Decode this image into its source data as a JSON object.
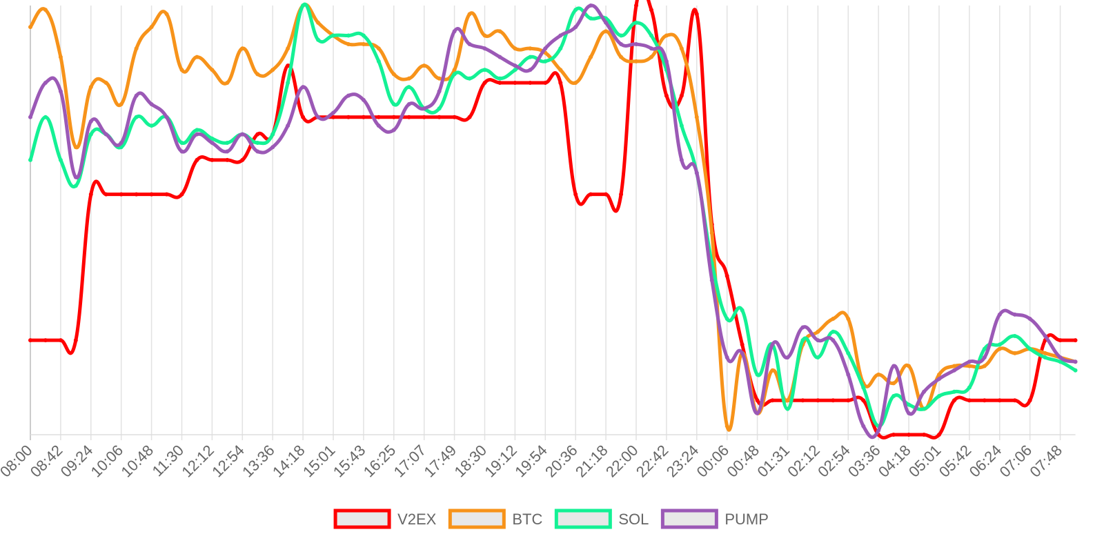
{
  "chart_data": {
    "type": "line",
    "categories": [
      "08:00",
      null,
      "08:42",
      null,
      "09:24",
      null,
      "10:06",
      null,
      "10:48",
      null,
      "11:30",
      null,
      "12:12",
      null,
      "12:54",
      null,
      "13:36",
      null,
      "14:18",
      null,
      "15:01",
      null,
      "15:43",
      null,
      "16:25",
      null,
      "17:07",
      null,
      "17:49",
      null,
      "18:30",
      null,
      "19:12",
      null,
      "19:54",
      null,
      "20:36",
      null,
      "21:18",
      null,
      "22:00",
      null,
      "22:42",
      null,
      "23:24",
      null,
      "00:06",
      null,
      "00:48",
      null,
      "01:31",
      null,
      "02:12",
      null,
      "02:54",
      null,
      "03:36",
      null,
      "04:18",
      null,
      "05:01",
      null,
      "05:42",
      null,
      "06:24",
      null,
      "07:06",
      null,
      "07:48",
      null
    ],
    "series": [
      {
        "name": "V2EX",
        "color": "#ff0000",
        "values": [
          22,
          22,
          22,
          22,
          56,
          56,
          56,
          56,
          56,
          56,
          56,
          64,
          64,
          64,
          64,
          70,
          70,
          86,
          74,
          74,
          74,
          74,
          74,
          74,
          74,
          74,
          74,
          74,
          74,
          74,
          82,
          82,
          82,
          82,
          82,
          82,
          56,
          56,
          56,
          56,
          100,
          99,
          79,
          79,
          98,
          49,
          37,
          21,
          8,
          8,
          8,
          8,
          8,
          8,
          8,
          8,
          0,
          0,
          0,
          0,
          0,
          8,
          8,
          8,
          8,
          8,
          8,
          22,
          22,
          22
        ]
      },
      {
        "name": "BTC",
        "color": "#f7931a",
        "values": [
          95,
          99,
          88,
          67,
          81,
          82,
          77,
          90,
          95,
          98,
          85,
          88,
          85,
          82,
          90,
          84,
          85,
          90,
          100,
          96,
          93,
          91,
          91,
          90,
          84,
          83,
          86,
          83,
          85,
          98,
          93,
          94,
          90,
          90,
          89,
          85,
          82,
          88,
          94,
          88,
          87,
          88,
          93,
          90,
          74,
          47,
          2,
          19,
          5,
          15,
          8,
          21,
          24,
          27,
          27,
          12,
          14,
          12,
          16,
          6,
          14,
          16,
          16,
          16,
          20,
          19,
          20,
          19,
          18,
          17
        ]
      },
      {
        "name": "SOL",
        "color": "#14f195",
        "values": [
          64,
          74,
          64,
          58,
          70,
          70,
          67,
          74,
          72,
          74,
          68,
          71,
          69,
          68,
          70,
          68,
          70,
          82,
          100,
          92,
          93,
          93,
          93,
          87,
          77,
          81,
          76,
          76,
          84,
          83,
          85,
          83,
          85,
          88,
          87,
          90,
          99,
          97,
          97,
          93,
          96,
          93,
          85,
          72,
          61,
          40,
          27,
          29,
          14,
          21,
          6,
          22,
          18,
          24,
          19,
          11,
          2,
          9,
          7,
          6,
          9,
          10,
          11,
          20,
          21,
          23,
          20,
          18,
          17,
          15
        ]
      },
      {
        "name": "PUMP",
        "color": "#9b59b6",
        "values": [
          74,
          82,
          80,
          60,
          73,
          70,
          68,
          79,
          77,
          74,
          66,
          70,
          68,
          66,
          70,
          66,
          67,
          72,
          81,
          74,
          75,
          79,
          78,
          72,
          71,
          77,
          76,
          80,
          94,
          91,
          90,
          88,
          86,
          85,
          90,
          93,
          95,
          100,
          96,
          91,
          91,
          90,
          87,
          64,
          61,
          36,
          18,
          19,
          5,
          21,
          18,
          25,
          22,
          22,
          14,
          2,
          1,
          16,
          5,
          10,
          13,
          15,
          17,
          18,
          28,
          28,
          27,
          23,
          18,
          17
        ]
      }
    ],
    "ylim": [
      0,
      100
    ],
    "grid": true,
    "legend": "bottom"
  }
}
